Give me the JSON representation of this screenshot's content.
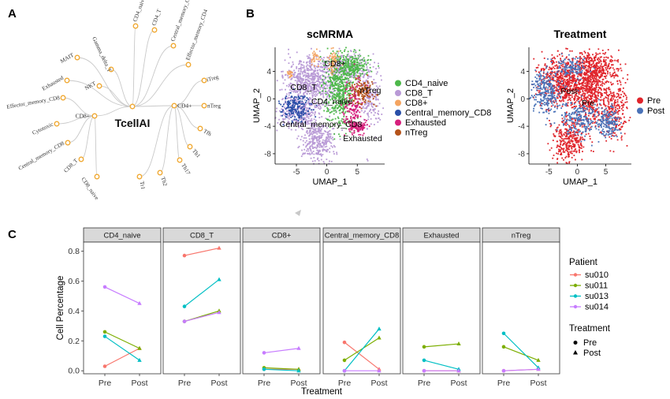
{
  "panel_labels": {
    "a": "A",
    "b": "B",
    "c": "C"
  },
  "tree": {
    "center": "TcellAI",
    "right_hub": "CD4+",
    "left_hub": "CD8+",
    "top_branches": [
      "CD4_naive",
      "CD4_T",
      "Central_memory_CD4",
      "Effector_memory_CD4"
    ],
    "right_branches": [
      "iTreg",
      "nTreg",
      "Tfh",
      "Th1",
      "Th17",
      "Th2",
      "Tr1"
    ],
    "left_top_branches": [
      "MAIT",
      "Gamma_delta_T",
      "Exhausted",
      "NKT"
    ],
    "left_branches": [
      "Effector_memory_CD8",
      "Cytotoxic",
      "Central_memory_CD8",
      "CD8_T",
      "CD8_naive"
    ],
    "node_color": "#F0A830"
  },
  "umap_left": {
    "title": "scMRMA",
    "xlabel": "UMAP_1",
    "ylabel": "UMAP_2",
    "xticks": [
      "-5",
      "0",
      "5"
    ],
    "yticks": [
      "4",
      "0",
      "-4",
      "-8"
    ],
    "cluster_labels": [
      "CD8+",
      "nTreg",
      "CD8_T",
      "CD4_naive",
      "Central_memory_CD8",
      "Exhausted"
    ],
    "legend": [
      {
        "label": "CD4_naive",
        "color": "#4DB84A"
      },
      {
        "label": "CD8_T",
        "color": "#B99AD6"
      },
      {
        "label": "CD8+",
        "color": "#F4A460"
      },
      {
        "label": "Central_memory_CD8",
        "color": "#2A4FA8"
      },
      {
        "label": "Exhausted",
        "color": "#D6207C"
      },
      {
        "label": "nTreg",
        "color": "#B5531A"
      }
    ]
  },
  "umap_right": {
    "title": "Treatment",
    "xlabel": "UMAP_1",
    "ylabel": "UMAP_2",
    "xticks": [
      "-5",
      "0",
      "5"
    ],
    "yticks": [
      "4",
      "0",
      "-4",
      "-8"
    ],
    "cluster_labels": [
      "Post",
      "Pre"
    ],
    "legend": [
      {
        "label": "Pre",
        "color": "#E0242B"
      },
      {
        "label": "Post",
        "color": "#4A72B8"
      }
    ]
  },
  "chart_data": {
    "type": "line",
    "facets": [
      "CD4_naive",
      "CD8_T",
      "CD8+",
      "Central_memory_CD8",
      "Exhausted",
      "nTreg"
    ],
    "categories": [
      "Pre",
      "Post"
    ],
    "xlabel": "Treatment",
    "ylabel": "Cell Percentage",
    "ylim": [
      -0.02,
      0.86
    ],
    "yticks": [
      "0.0",
      "0.2",
      "0.4",
      "0.6",
      "0.8"
    ],
    "ytick_values": [
      0,
      0.2,
      0.4,
      0.6,
      0.8
    ],
    "legend_patient_title": "Patient",
    "legend_treatment_title": "Treatment",
    "treatment_legend": [
      {
        "label": "Pre",
        "shape": "circle"
      },
      {
        "label": "Post",
        "shape": "triangle"
      }
    ],
    "series": [
      {
        "name": "su010",
        "color": "#F8766D",
        "values": [
          [
            0.03,
            0.15
          ],
          [
            0.77,
            0.82
          ],
          [
            0.01,
            0.01
          ],
          [
            0.19,
            0.01
          ],
          [
            0.0,
            0.0
          ],
          [
            0.0,
            0.01
          ]
        ]
      },
      {
        "name": "su011",
        "color": "#7CAE00",
        "values": [
          [
            0.26,
            0.15
          ],
          [
            0.33,
            0.4
          ],
          [
            0.02,
            0.01
          ],
          [
            0.07,
            0.22
          ],
          [
            0.16,
            0.18
          ],
          [
            0.16,
            0.07
          ]
        ]
      },
      {
        "name": "su013",
        "color": "#00BFC4",
        "values": [
          [
            0.23,
            0.07
          ],
          [
            0.43,
            0.61
          ],
          [
            0.01,
            0.0
          ],
          [
            0.0,
            0.28
          ],
          [
            0.07,
            0.01
          ],
          [
            0.25,
            0.02
          ]
        ]
      },
      {
        "name": "su014",
        "color": "#C77CFF",
        "values": [
          [
            0.56,
            0.45
          ],
          [
            0.33,
            0.39
          ],
          [
            0.12,
            0.15
          ],
          [
            0.0,
            0.0
          ],
          [
            0.0,
            0.0
          ],
          [
            0.0,
            0.01
          ]
        ]
      }
    ]
  }
}
